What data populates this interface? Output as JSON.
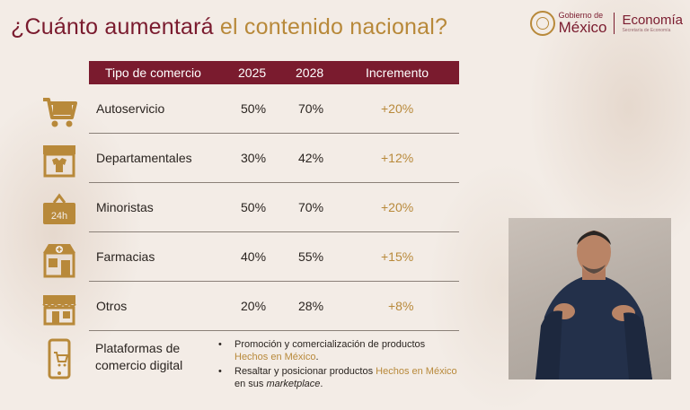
{
  "title": {
    "part1": "¿Cuánto aumentará ",
    "part2": "el contenido nacional?"
  },
  "logo": {
    "gob_small": "Gobierno de",
    "gob_big": "México",
    "eco_big": "Economía",
    "eco_small": "Secretaría de Economía"
  },
  "table": {
    "headers": [
      "Tipo de comercio",
      "2025",
      "2028",
      "Incremento"
    ],
    "rows": [
      {
        "name": "Autoservicio",
        "y2025": "50%",
        "y2028": "70%",
        "inc": "+20%",
        "icon": "shopping-cart-icon"
      },
      {
        "name": "Departamentales",
        "y2025": "30%",
        "y2028": "42%",
        "inc": "+12%",
        "icon": "department-store-icon"
      },
      {
        "name": "Minoristas",
        "y2025": "50%",
        "y2028": "70%",
        "inc": "+20%",
        "icon": "24h-store-icon"
      },
      {
        "name": "Farmacias",
        "y2025": "40%",
        "y2028": "55%",
        "inc": "+15%",
        "icon": "pharmacy-icon"
      },
      {
        "name": "Otros",
        "y2025": "20%",
        "y2028": "28%",
        "inc": "+8%",
        "icon": "shop-icon"
      }
    ]
  },
  "platforms": {
    "label_line1": "Plataformas de",
    "label_line2": "comercio digital",
    "bullet1_a": "Promoción y comercialización de productos",
    "bullet1_b": "Hechos en México",
    "bullet1_c": ".",
    "bullet2_a": "Resaltar y posicionar productos ",
    "bullet2_b": "Hechos en México",
    "bullet2_c": " en sus ",
    "bullet2_d": "marketplace",
    "bullet2_e": "."
  },
  "colors": {
    "brand": "#7a1b2e",
    "accent": "#b8893a",
    "background": "#f3ece6"
  }
}
